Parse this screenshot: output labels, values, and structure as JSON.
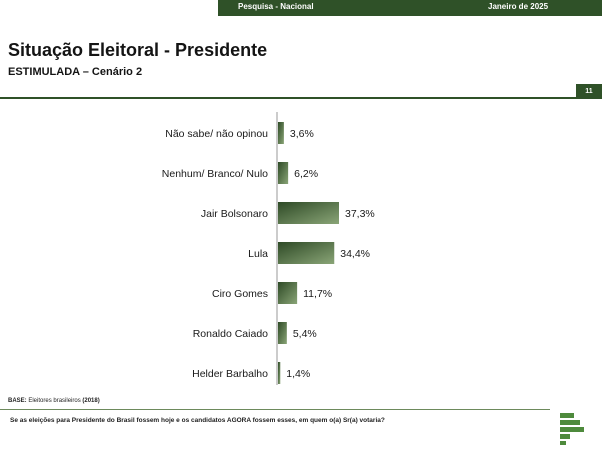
{
  "header": {
    "survey": "Pesquisa - Nacional",
    "date": "Janeiro de 2025"
  },
  "title": "Situação Eleitoral - Presidente",
  "subtitle": "ESTIMULADA – Cenário 2",
  "page_number": "11",
  "footer": {
    "base_label": "BASE:",
    "base_text": "Eleitores brasileiros",
    "base_count": "(2018)",
    "question": "Se as eleições para Presidente do Brasil fossem hoje e os candidatos AGORA fossem esses, em quem o(a) Sr(a) votaria?"
  },
  "colors": {
    "brand_green": "#2f5128",
    "bar_dark": "#2e4a26",
    "bar_light": "#8aa577"
  },
  "logo_icon": "pesquisa-logo-icon",
  "chart_data": {
    "type": "bar",
    "orientation": "horizontal",
    "categories": [
      "Não sabe/ não opinou",
      "Nenhum/ Branco/ Nulo",
      "Jair Bolsonaro",
      "Lula",
      "Ciro Gomes",
      "Ronaldo Caiado",
      "Helder Barbalho"
    ],
    "values": [
      3.6,
      6.2,
      37.3,
      34.4,
      11.7,
      5.4,
      1.4
    ],
    "value_labels": [
      "3,6%",
      "6,2%",
      "37,3%",
      "34,4%",
      "11,7%",
      "5,4%",
      "1,4%"
    ],
    "xlim": [
      0,
      40
    ],
    "grid": false,
    "legend": "none"
  }
}
